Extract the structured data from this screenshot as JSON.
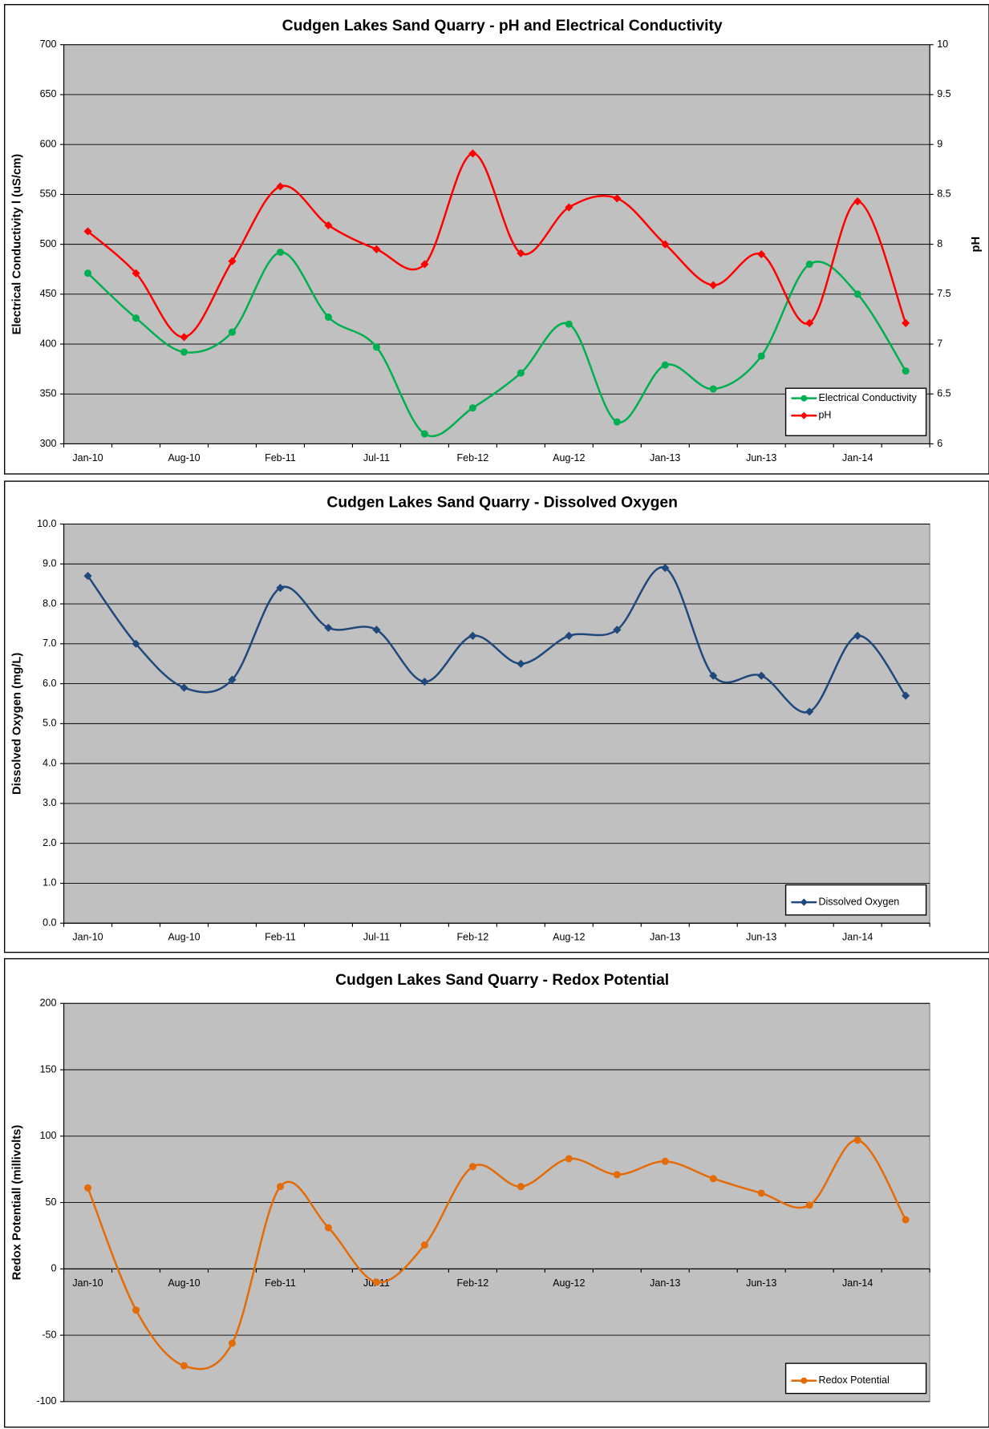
{
  "chart_data": [
    {
      "type": "line",
      "title": "Cudgen Lakes Sand Quarry - pH and Electrical Conductivity",
      "categories": [
        "Jan-10",
        null,
        "Aug-10",
        null,
        "Feb-11",
        null,
        "Jul-11",
        null,
        "Feb-12",
        null,
        "Aug-12",
        null,
        "Jan-13",
        null,
        "Jun-13",
        null,
        "Jan-14",
        null
      ],
      "y_label": "Electrical Conductivity l (uS/cm)",
      "y2_label": "pH",
      "series": [
        {
          "name": "Electrical Conductivity",
          "color": "#00b050",
          "marker": "circle",
          "values": [
            471,
            426,
            392,
            412,
            492,
            427,
            397,
            310,
            336,
            371,
            420,
            322,
            379,
            355,
            388,
            480,
            450,
            373
          ]
        },
        {
          "name": "pH",
          "color": "#ff0000",
          "marker": "diamond",
          "axis": "y2",
          "values": [
            8.13,
            7.71,
            7.07,
            7.83,
            8.58,
            8.19,
            7.95,
            7.8,
            8.91,
            7.91,
            8.37,
            8.46,
            8.0,
            7.59,
            7.9,
            7.21,
            8.43,
            7.21
          ]
        }
      ],
      "ylim": [
        300,
        700
      ],
      "yticks": [
        300,
        350,
        400,
        450,
        500,
        550,
        600,
        650,
        700
      ],
      "y2lim": [
        6,
        10
      ],
      "y2ticks": [
        6,
        6.5,
        7,
        7.5,
        8,
        8.5,
        9,
        9.5,
        10
      ],
      "grid": true,
      "legend": "lower right"
    },
    {
      "type": "line",
      "title": "Cudgen Lakes Sand Quarry - Dissolved Oxygen",
      "categories": [
        "Jan-10",
        null,
        "Aug-10",
        null,
        "Feb-11",
        null,
        "Jul-11",
        null,
        "Feb-12",
        null,
        "Aug-12",
        null,
        "Jan-13",
        null,
        "Jun-13",
        null,
        "Jan-14",
        null
      ],
      "y_label": "Dissolved Oxygen (mg/L)",
      "series": [
        {
          "name": "Dissolved Oxygen",
          "color": "#1f497d",
          "marker": "diamond",
          "values": [
            8.7,
            7.0,
            5.9,
            6.1,
            8.4,
            7.4,
            7.35,
            6.05,
            7.2,
            6.5,
            7.2,
            7.35,
            8.9,
            6.2,
            6.2,
            5.3,
            7.2,
            5.7
          ]
        }
      ],
      "ylim": [
        0,
        10
      ],
      "yticks": [
        {
          "value": 0,
          "label": "0.0"
        },
        {
          "value": 1,
          "label": "1.0"
        },
        {
          "value": 2,
          "label": "2.0"
        },
        {
          "value": 3,
          "label": "3.0"
        },
        {
          "value": 4,
          "label": "4.0"
        },
        {
          "value": 5,
          "label": "5.0"
        },
        {
          "value": 6,
          "label": "6.0"
        },
        {
          "value": 7,
          "label": "7.0"
        },
        {
          "value": 8,
          "label": "8.0"
        },
        {
          "value": 9,
          "label": "9.0"
        },
        {
          "value": 10,
          "label": "10.0"
        }
      ],
      "grid": true,
      "legend": "lower right"
    },
    {
      "type": "line",
      "title": "Cudgen Lakes Sand Quarry - Redox Potential",
      "categories": [
        "Jan-10",
        null,
        "Aug-10",
        null,
        "Feb-11",
        null,
        "Jul-11",
        null,
        "Feb-12",
        null,
        "Aug-12",
        null,
        "Jan-13",
        null,
        "Jun-13",
        null,
        "Jan-14",
        null
      ],
      "y_label": "Redox Potentiall (millivolts)",
      "series": [
        {
          "name": "Redox Potential",
          "color": "#e36c09",
          "marker": "circle",
          "values": [
            61,
            -31,
            -73,
            -56,
            62,
            31,
            -10,
            18,
            77,
            62,
            83,
            71,
            81,
            68,
            57,
            48,
            97,
            37
          ]
        }
      ],
      "ylim": [
        -100,
        200
      ],
      "yticks": [
        -100,
        -50,
        0,
        50,
        100,
        150,
        200
      ],
      "grid": true,
      "legend": "lower right"
    }
  ]
}
